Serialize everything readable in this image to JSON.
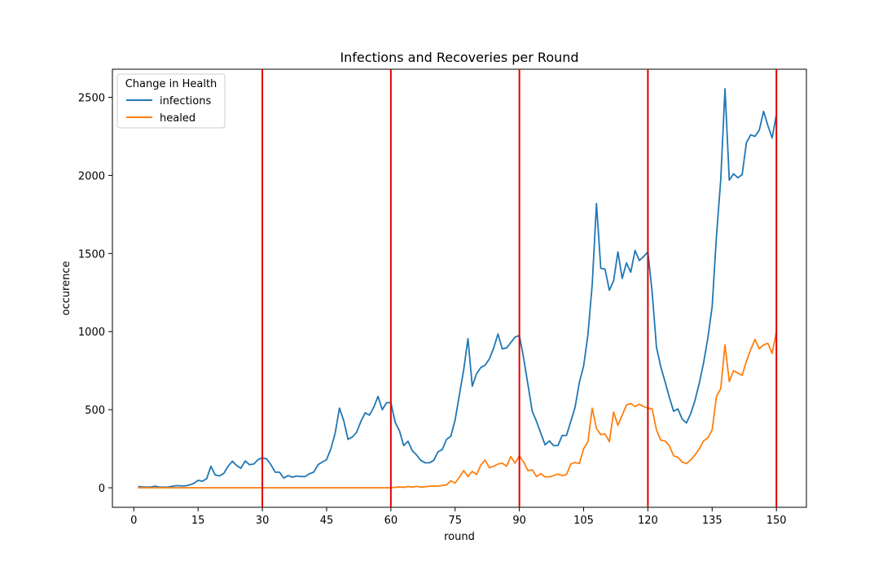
{
  "chart_data": {
    "type": "line",
    "title": "Infections and Recoveries per Round",
    "xlabel": "round",
    "ylabel": "occurence",
    "xlim": [
      -5,
      157
    ],
    "ylim": [
      -125,
      2680
    ],
    "xticks": [
      0,
      15,
      30,
      45,
      60,
      75,
      90,
      105,
      120,
      135,
      150
    ],
    "yticks": [
      0,
      500,
      1000,
      1500,
      2000,
      2500
    ],
    "grid": false,
    "legend": {
      "title": "Change in Health",
      "placement": "top-left"
    },
    "vlines": {
      "x": [
        30,
        60,
        90,
        120,
        150
      ],
      "color": "#e00000"
    },
    "series": [
      {
        "name": "infections",
        "color": "#1f77b4",
        "x": [
          1,
          2,
          3,
          4,
          5,
          6,
          7,
          8,
          9,
          10,
          11,
          12,
          13,
          14,
          15,
          16,
          17,
          18,
          19,
          20,
          21,
          22,
          23,
          24,
          25,
          26,
          27,
          28,
          29,
          30,
          31,
          32,
          33,
          34,
          35,
          36,
          37,
          38,
          39,
          40,
          41,
          42,
          43,
          44,
          45,
          46,
          47,
          48,
          49,
          50,
          51,
          52,
          53,
          54,
          55,
          56,
          57,
          58,
          59,
          60,
          61,
          62,
          63,
          64,
          65,
          66,
          67,
          68,
          69,
          70,
          71,
          72,
          73,
          74,
          75,
          76,
          77,
          78,
          79,
          80,
          81,
          82,
          83,
          84,
          85,
          86,
          87,
          88,
          89,
          90,
          91,
          92,
          93,
          94,
          95,
          96,
          97,
          98,
          99,
          100,
          101,
          102,
          103,
          104,
          105,
          106,
          107,
          108,
          109,
          110,
          111,
          112,
          113,
          114,
          115,
          116,
          117,
          118,
          119,
          120,
          121,
          122,
          123,
          124,
          125,
          126,
          127,
          128,
          129,
          130,
          131,
          132,
          133,
          134,
          135,
          136,
          137,
          138,
          139,
          140,
          141,
          142,
          143,
          144,
          145,
          146,
          147,
          148,
          149,
          150
        ],
        "values": [
          8,
          5,
          4,
          5,
          10,
          4,
          4,
          4,
          10,
          14,
          12,
          12,
          18,
          28,
          48,
          42,
          58,
          138,
          82,
          76,
          92,
          138,
          170,
          142,
          125,
          172,
          148,
          152,
          180,
          192,
          185,
          148,
          100,
          100,
          62,
          78,
          68,
          75,
          72,
          72,
          90,
          100,
          148,
          165,
          180,
          250,
          350,
          510,
          430,
          310,
          325,
          355,
          425,
          480,
          465,
          515,
          585,
          500,
          545,
          545,
          420,
          365,
          270,
          298,
          238,
          210,
          175,
          160,
          160,
          175,
          230,
          245,
          310,
          330,
          435,
          595,
          755,
          955,
          650,
          730,
          770,
          785,
          825,
          895,
          985,
          890,
          895,
          930,
          965,
          975,
          830,
          660,
          490,
          425,
          350,
          275,
          300,
          270,
          270,
          335,
          335,
          425,
          515,
          675,
          780,
          980,
          1300,
          1820,
          1405,
          1400,
          1265,
          1325,
          1510,
          1340,
          1440,
          1380,
          1520,
          1455,
          1480,
          1510,
          1250,
          900,
          775,
          680,
          580,
          490,
          505,
          440,
          415,
          475,
          560,
          670,
          800,
          960,
          1160,
          1610,
          1970,
          2555,
          1970,
          2010,
          1985,
          2005,
          2210,
          2260,
          2250,
          2290,
          2410,
          2320,
          2240,
          2390
        ]
      },
      {
        "name": "healed",
        "color": "#ff7f0e",
        "x": [
          1,
          2,
          3,
          4,
          5,
          6,
          7,
          8,
          9,
          10,
          11,
          12,
          13,
          14,
          15,
          16,
          17,
          18,
          19,
          20,
          21,
          22,
          23,
          24,
          25,
          26,
          27,
          28,
          29,
          30,
          31,
          32,
          33,
          34,
          35,
          36,
          37,
          38,
          39,
          40,
          41,
          42,
          43,
          44,
          45,
          46,
          47,
          48,
          49,
          50,
          51,
          52,
          53,
          54,
          55,
          56,
          57,
          58,
          59,
          60,
          61,
          62,
          63,
          64,
          65,
          66,
          67,
          68,
          69,
          70,
          71,
          72,
          73,
          74,
          75,
          76,
          77,
          78,
          79,
          80,
          81,
          82,
          83,
          84,
          85,
          86,
          87,
          88,
          89,
          90,
          91,
          92,
          93,
          94,
          95,
          96,
          97,
          98,
          99,
          100,
          101,
          102,
          103,
          104,
          105,
          106,
          107,
          108,
          109,
          110,
          111,
          112,
          113,
          114,
          115,
          116,
          117,
          118,
          119,
          120,
          121,
          122,
          123,
          124,
          125,
          126,
          127,
          128,
          129,
          130,
          131,
          132,
          133,
          134,
          135,
          136,
          137,
          138,
          139,
          140,
          141,
          142,
          143,
          144,
          145,
          146,
          147,
          148,
          149,
          150
        ],
        "values": [
          0,
          0,
          0,
          0,
          0,
          0,
          0,
          0,
          0,
          0,
          0,
          0,
          0,
          0,
          0,
          0,
          0,
          0,
          0,
          0,
          0,
          0,
          0,
          0,
          0,
          0,
          0,
          0,
          0,
          0,
          0,
          0,
          0,
          0,
          0,
          0,
          0,
          0,
          0,
          0,
          0,
          0,
          0,
          0,
          0,
          0,
          0,
          0,
          0,
          0,
          0,
          0,
          0,
          0,
          0,
          0,
          0,
          0,
          0,
          0,
          3,
          5,
          3,
          8,
          5,
          9,
          4,
          6,
          10,
          12,
          10,
          15,
          18,
          45,
          30,
          68,
          110,
          72,
          105,
          85,
          145,
          178,
          128,
          138,
          152,
          158,
          138,
          200,
          158,
          205,
          165,
          110,
          115,
          72,
          90,
          70,
          70,
          78,
          88,
          78,
          85,
          152,
          162,
          155,
          250,
          295,
          510,
          380,
          340,
          345,
          295,
          485,
          400,
          465,
          530,
          540,
          520,
          535,
          520,
          510,
          505,
          370,
          305,
          300,
          270,
          205,
          195,
          165,
          155,
          178,
          210,
          250,
          300,
          320,
          370,
          585,
          635,
          915,
          680,
          750,
          735,
          720,
          810,
          885,
          950,
          890,
          915,
          925,
          860,
          1000
        ]
      }
    ]
  }
}
